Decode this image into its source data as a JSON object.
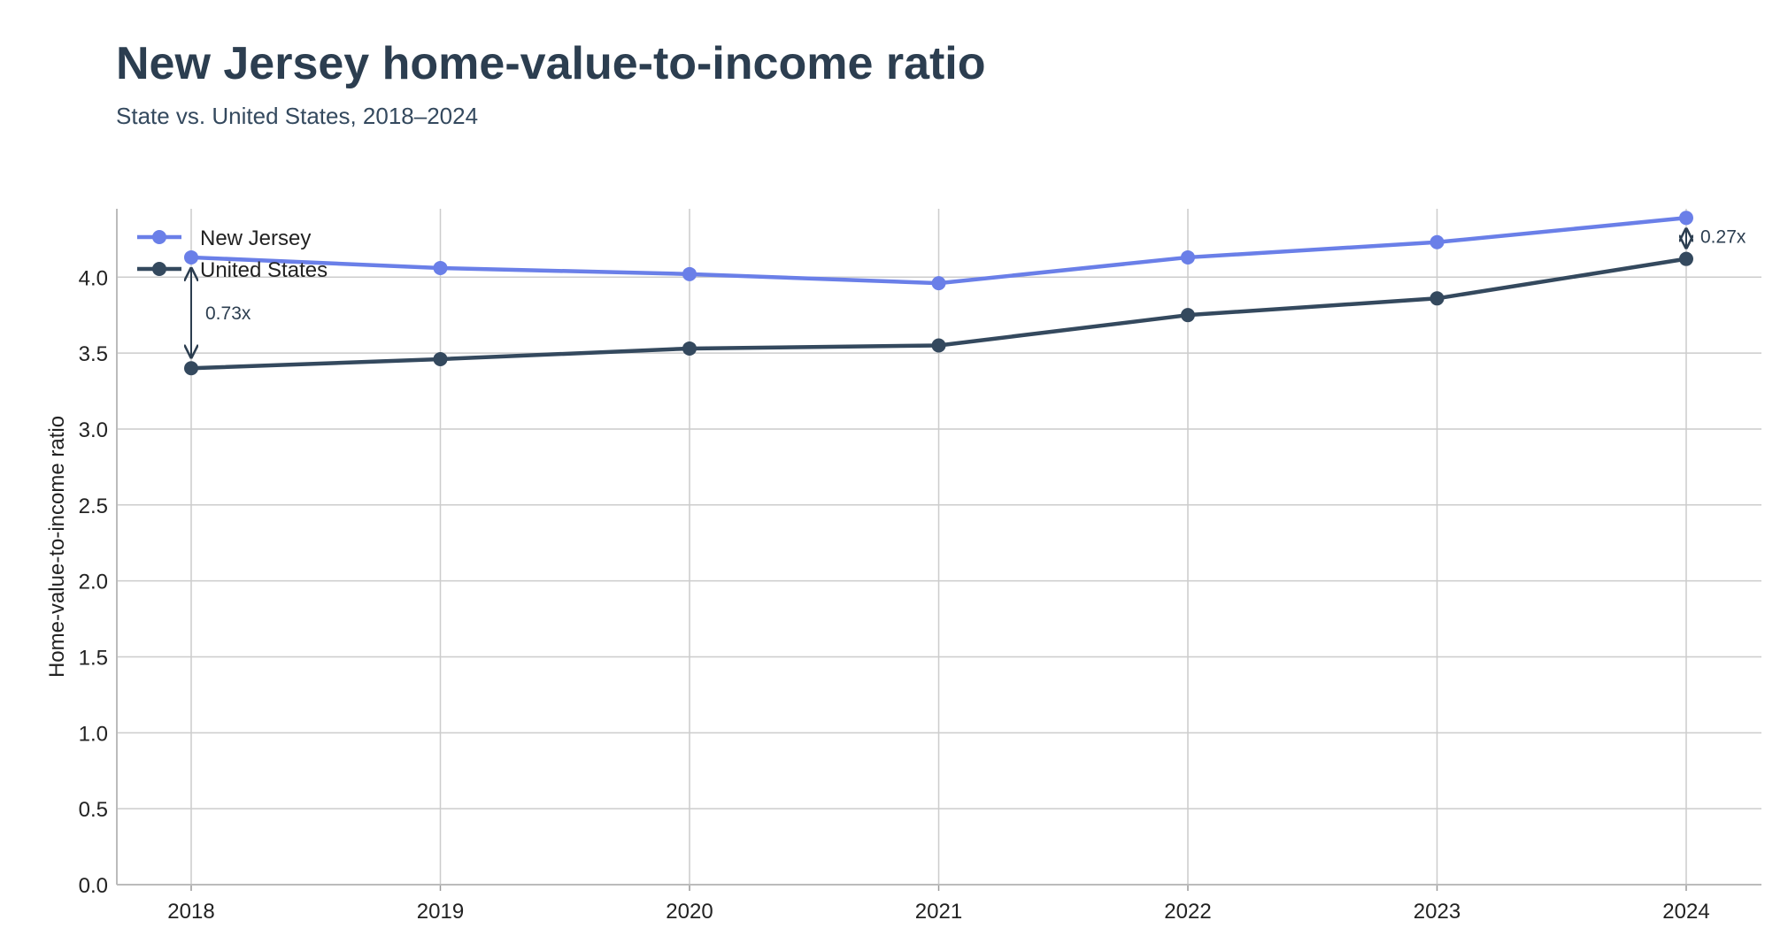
{
  "header": {
    "title": "New Jersey home-value-to-income ratio",
    "subtitle": "State vs. United States, 2018–2024"
  },
  "chart_data": {
    "type": "line",
    "title": "New Jersey home-value-to-income ratio",
    "subtitle": "State vs. United States, 2018–2024",
    "xlabel": "",
    "ylabel": "Home-value-to-income ratio",
    "x": [
      "2018",
      "2019",
      "2020",
      "2021",
      "2022",
      "2023",
      "2024"
    ],
    "ylim": [
      0,
      4.45
    ],
    "yticks": [
      "0.0",
      "0.5",
      "1.0",
      "1.5",
      "2.0",
      "2.5",
      "3.0",
      "3.5",
      "4.0"
    ],
    "grid": true,
    "legend": "top-left",
    "series": [
      {
        "name": "New Jersey",
        "color": "#6a7fe8",
        "values": [
          4.13,
          4.06,
          4.02,
          3.96,
          4.13,
          4.23,
          4.39
        ]
      },
      {
        "name": "United States",
        "color": "#34495e",
        "values": [
          3.4,
          3.46,
          3.53,
          3.55,
          3.75,
          3.86,
          4.12
        ]
      }
    ],
    "annotations": [
      {
        "x": "2018",
        "text": "0.73x"
      },
      {
        "x": "2024",
        "text": "0.27x"
      }
    ]
  }
}
